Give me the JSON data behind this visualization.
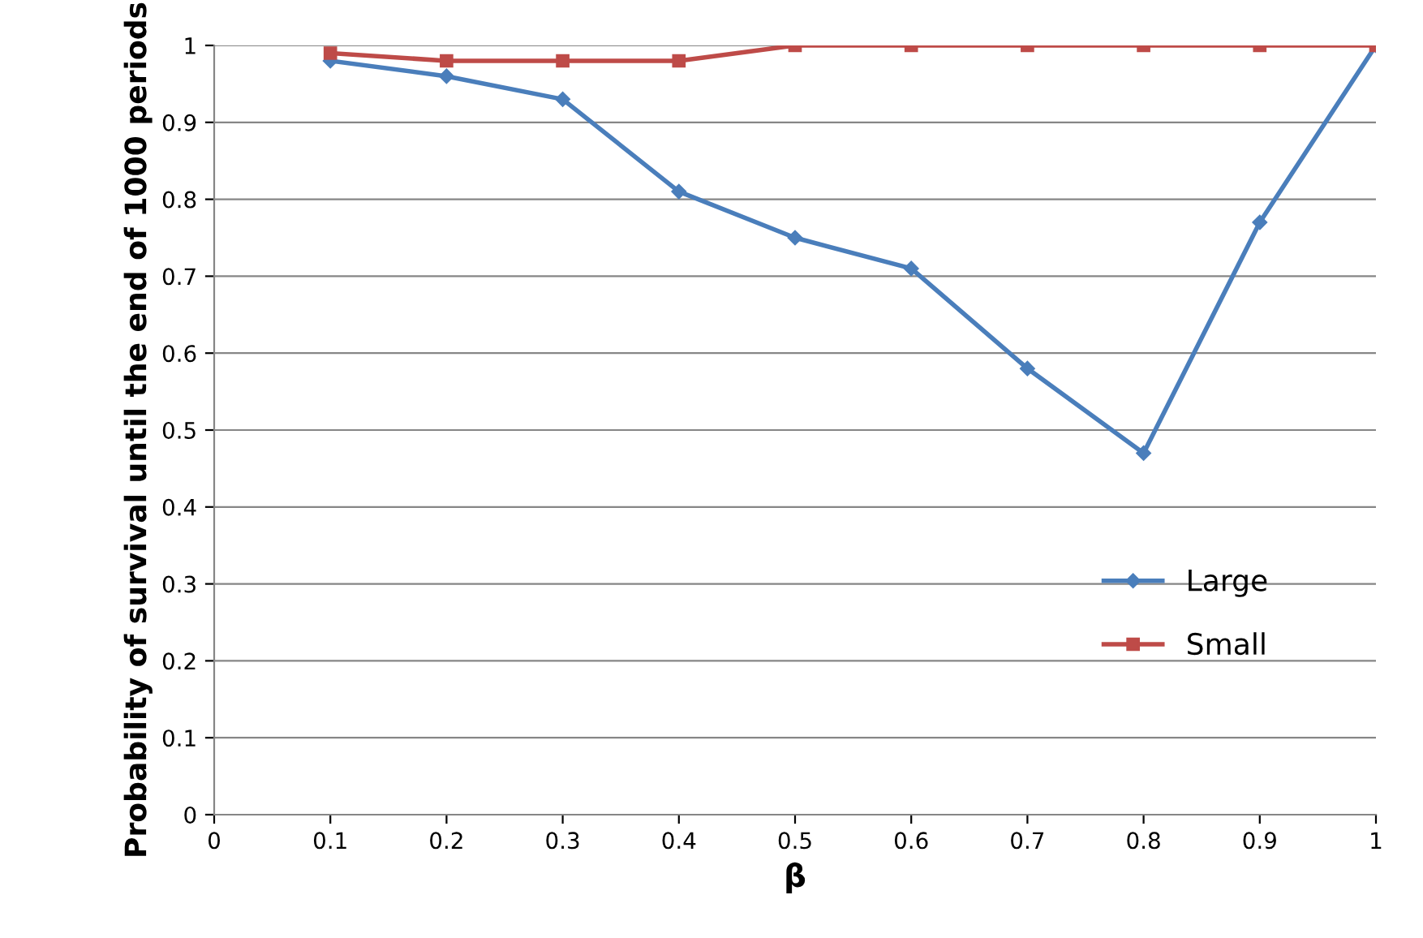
{
  "chart_data": {
    "type": "line",
    "xlabel": "β",
    "ylabel": "Probability of survival until the end of 1000 periods",
    "x": [
      0.1,
      0.2,
      0.3,
      0.4,
      0.5,
      0.6,
      0.7,
      0.8,
      0.9,
      1
    ],
    "series": [
      {
        "name": "Large",
        "color": "#4a7ebb",
        "marker": "diamond",
        "values": [
          0.98,
          0.96,
          0.93,
          0.81,
          0.75,
          0.71,
          0.58,
          0.47,
          0.77,
          1.0
        ]
      },
      {
        "name": "Small",
        "color": "#be4b48",
        "marker": "square",
        "values": [
          0.99,
          0.98,
          0.98,
          0.98,
          1.0,
          1.0,
          1.0,
          1.0,
          1.0,
          1.0
        ]
      }
    ],
    "xlim": [
      0,
      1
    ],
    "xticks": [
      0,
      0.1,
      0.2,
      0.3,
      0.4,
      0.5,
      0.6,
      0.7,
      0.8,
      0.9,
      1
    ],
    "ylim": [
      0,
      1
    ],
    "yticks": [
      0,
      0.1,
      0.2,
      0.3,
      0.4,
      0.5,
      0.6,
      0.7,
      0.8,
      0.9,
      1
    ],
    "grid": "y",
    "legend": "right",
    "line_style": "solid"
  }
}
